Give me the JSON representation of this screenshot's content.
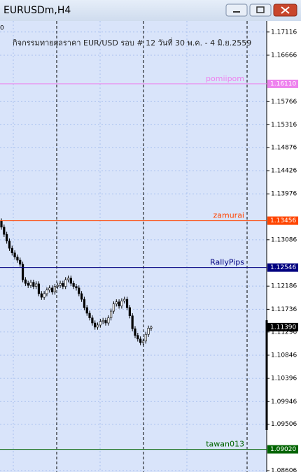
{
  "window": {
    "title": "EURUSDm,H4"
  },
  "chart_data": {
    "type": "candlestick",
    "corner_label": "0",
    "annotation": "กิจกรรมทายผลราคา EUR/USD รอบ # 12 วันที่ 30 พ.ค. - 4 มิ.ย.2559",
    "open": [
      1.1345,
      1.1333,
      1.1319,
      1.1306,
      1.1292,
      1.1283,
      1.1275,
      1.1269,
      1.1261,
      1.1231,
      1.1224,
      1.122,
      1.1226,
      1.1218,
      1.1223,
      1.1204,
      1.1197,
      1.1204,
      1.1211,
      1.1215,
      1.1207,
      1.1218,
      1.122,
      1.1224,
      1.1218,
      1.1231,
      1.1234,
      1.1224,
      1.1218,
      1.1215,
      1.1204,
      1.1193,
      1.1177,
      1.1166,
      1.1157,
      1.1147,
      1.1139,
      1.1143,
      1.115,
      1.1152,
      1.1147,
      1.1157,
      1.117,
      1.1184,
      1.1188,
      1.118,
      1.119,
      1.1193,
      1.1177,
      1.1161,
      1.1136,
      1.1123,
      1.1116,
      1.1109,
      1.1112,
      1.1125,
      1.1137
    ],
    "high": [
      1.135,
      1.1338,
      1.1324,
      1.1311,
      1.1297,
      1.1288,
      1.128,
      1.1274,
      1.1266,
      1.1236,
      1.1229,
      1.1231,
      1.1231,
      1.1228,
      1.1228,
      1.1209,
      1.1209,
      1.1216,
      1.122,
      1.122,
      1.1223,
      1.1225,
      1.1229,
      1.1229,
      1.1236,
      1.1239,
      1.1239,
      1.1229,
      1.1223,
      1.122,
      1.1209,
      1.1198,
      1.1182,
      1.1171,
      1.1162,
      1.1152,
      1.1148,
      1.1155,
      1.1157,
      1.1157,
      1.1162,
      1.1175,
      1.1189,
      1.1193,
      1.1193,
      1.1195,
      1.1198,
      1.1198,
      1.1182,
      1.1166,
      1.1141,
      1.1128,
      1.1121,
      1.1117,
      1.113,
      1.1142,
      1.1142
    ],
    "low": [
      1.1328,
      1.1314,
      1.1301,
      1.1287,
      1.1278,
      1.127,
      1.1264,
      1.1256,
      1.1226,
      1.1219,
      1.1215,
      1.1215,
      1.1213,
      1.1213,
      1.1199,
      1.1192,
      1.1192,
      1.1199,
      1.1206,
      1.1202,
      1.1202,
      1.1213,
      1.1215,
      1.1213,
      1.1213,
      1.1226,
      1.1219,
      1.1213,
      1.121,
      1.1199,
      1.1188,
      1.1172,
      1.1161,
      1.1152,
      1.1142,
      1.1134,
      1.1134,
      1.1138,
      1.1145,
      1.1142,
      1.1142,
      1.1152,
      1.1165,
      1.1179,
      1.1175,
      1.1175,
      1.1185,
      1.1172,
      1.1156,
      1.1131,
      1.1118,
      1.1111,
      1.1104,
      1.1104,
      1.1107,
      1.112,
      1.1132
    ],
    "close": [
      1.1333,
      1.1319,
      1.1306,
      1.1292,
      1.1283,
      1.1275,
      1.1269,
      1.1261,
      1.1231,
      1.1224,
      1.122,
      1.1226,
      1.1218,
      1.1223,
      1.1204,
      1.1197,
      1.1204,
      1.1211,
      1.1215,
      1.1207,
      1.1218,
      1.122,
      1.1224,
      1.1218,
      1.1231,
      1.1234,
      1.1224,
      1.1218,
      1.1215,
      1.1204,
      1.1193,
      1.1177,
      1.1166,
      1.1157,
      1.1147,
      1.1139,
      1.1143,
      1.115,
      1.1152,
      1.1147,
      1.1157,
      1.117,
      1.1184,
      1.1188,
      1.118,
      1.119,
      1.1193,
      1.1177,
      1.1161,
      1.1136,
      1.1123,
      1.1116,
      1.1109,
      1.1112,
      1.1125,
      1.1137,
      1.1139
    ],
    "bull_color": "#ffffff",
    "bear_color": "#000000",
    "ylim": [
      1.0858,
      1.1733
    ],
    "yticks": [
      1.17116,
      1.16666,
      1.15766,
      1.15316,
      1.14876,
      1.14426,
      1.13976,
      1.13086,
      1.12186,
      1.11736,
      1.11296,
      1.10846,
      1.10396,
      1.09946,
      1.09506,
      1.08606
    ],
    "grid": true,
    "hlines": [
      {
        "name": "pomiipom",
        "value": 1.1611,
        "label": "1.16110",
        "color": "#ee82ee"
      },
      {
        "name": "zamurai",
        "value": 1.13456,
        "label": "1.13456",
        "color": "#ff4500"
      },
      {
        "name": "RallyPips",
        "value": 1.12546,
        "label": "1.12546",
        "color": "#000080"
      },
      {
        "name": "tawan013",
        "value": 1.0902,
        "label": "1.09020",
        "color": "#006400"
      }
    ],
    "current": {
      "value": 1.1139,
      "label": "1.11390"
    }
  }
}
